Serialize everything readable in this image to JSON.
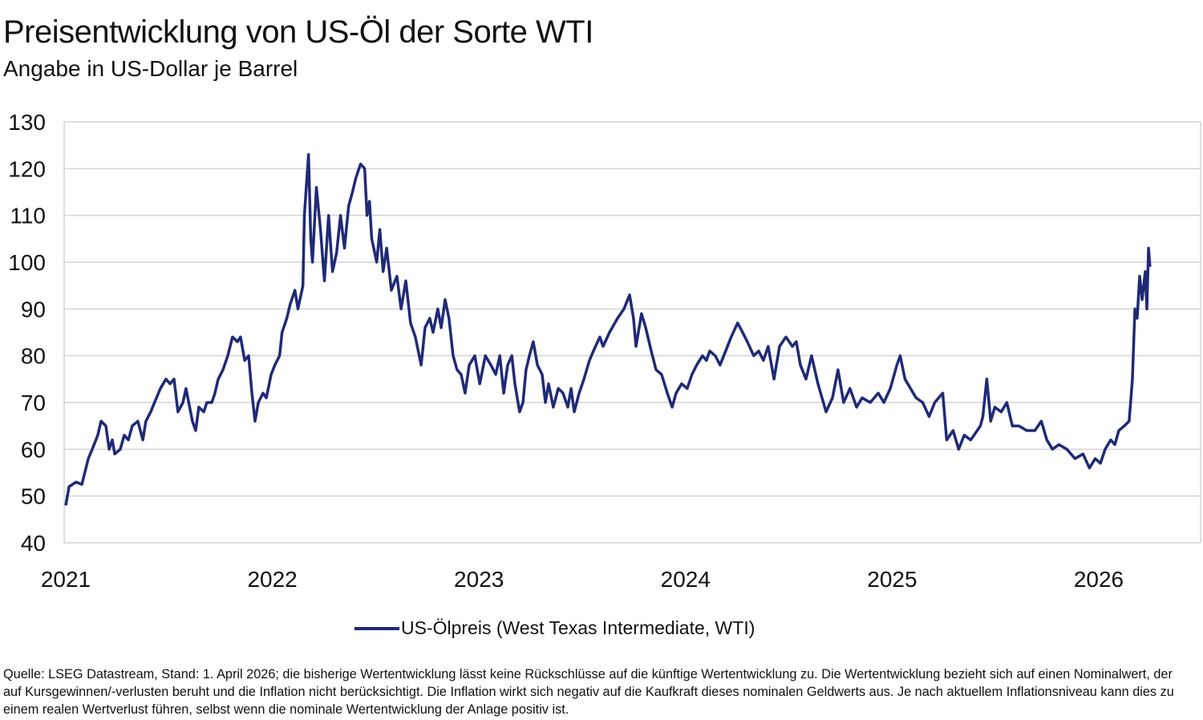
{
  "title": "Preisentwicklung von US-Öl der Sorte WTI",
  "subtitle": "Angabe in US-Dollar je Barrel",
  "source": "Quelle: LSEG Datastream, Stand: 1. April 2026; die bisherige Wertentwicklung lässt keine Rückschlüsse auf die künftige Wertentwicklung zu. Die Wertentwicklung bezieht sich auf einen Nominalwert, der auf Kursgewinnen/-verlusten beruht und die Inflation nicht berücksichtigt. Die Inflation wirkt sich negativ auf die Kaufkraft dieses nominalen Geldwerts aus. Je nach aktuellem Inflationsniveau kann dies zu einem realen Wertverlust führen, selbst wenn die nominale Wertentwicklung der Anlage positiv ist.",
  "chart_data": {
    "type": "line",
    "title": "Preisentwicklung von US-Öl der Sorte WTI",
    "subtitle": "Angabe in US-Dollar je Barrel",
    "xlabel": "",
    "ylabel": "",
    "ylim": [
      40,
      130
    ],
    "xlim": [
      2021,
      2026.5
    ],
    "yticks": [
      "40",
      "50",
      "60",
      "70",
      "80",
      "90",
      "100",
      "110",
      "120",
      "130"
    ],
    "xticks": [
      "2021",
      "2022",
      "2023",
      "2024",
      "2025",
      "2026"
    ],
    "grid": "horizontal",
    "legend_position": "bottom",
    "color": "#1f2a77",
    "series": [
      {
        "name": "US-Ölpreis (West Texas Intermediate, WTI)",
        "points": [
          [
            2021.0,
            48
          ],
          [
            2021.016,
            52
          ],
          [
            2021.05,
            53
          ],
          [
            2021.078,
            52.5
          ],
          [
            2021.109,
            58
          ],
          [
            2021.128,
            60
          ],
          [
            2021.155,
            63
          ],
          [
            2021.171,
            66
          ],
          [
            2021.194,
            65
          ],
          [
            2021.21,
            60
          ],
          [
            2021.225,
            62
          ],
          [
            2021.237,
            59
          ],
          [
            2021.264,
            60
          ],
          [
            2021.283,
            63
          ],
          [
            2021.303,
            62
          ],
          [
            2021.322,
            65
          ],
          [
            2021.349,
            66
          ],
          [
            2021.373,
            62
          ],
          [
            2021.388,
            66
          ],
          [
            2021.411,
            68
          ],
          [
            2021.439,
            71
          ],
          [
            2021.458,
            73
          ],
          [
            2021.485,
            75
          ],
          [
            2021.505,
            74
          ],
          [
            2021.524,
            75
          ],
          [
            2021.543,
            68
          ],
          [
            2021.567,
            70
          ],
          [
            2021.582,
            73
          ],
          [
            2021.613,
            66
          ],
          [
            2021.629,
            64
          ],
          [
            2021.644,
            69
          ],
          [
            2021.668,
            68
          ],
          [
            2021.683,
            70
          ],
          [
            2021.707,
            70
          ],
          [
            2021.722,
            72
          ],
          [
            2021.738,
            75
          ],
          [
            2021.761,
            77
          ],
          [
            2021.784,
            80
          ],
          [
            2021.807,
            84
          ],
          [
            2021.831,
            83
          ],
          [
            2021.846,
            84
          ],
          [
            2021.866,
            79
          ],
          [
            2021.885,
            80
          ],
          [
            2021.901,
            72
          ],
          [
            2021.916,
            66
          ],
          [
            2021.932,
            70
          ],
          [
            2021.955,
            72
          ],
          [
            2021.971,
            71
          ],
          [
            2021.994,
            76
          ],
          [
            2022.012,
            78
          ],
          [
            2022.035,
            80
          ],
          [
            2022.047,
            85
          ],
          [
            2022.07,
            88
          ],
          [
            2022.086,
            91
          ],
          [
            2022.109,
            94
          ],
          [
            2022.124,
            90
          ],
          [
            2022.148,
            95
          ],
          [
            2022.155,
            110
          ],
          [
            2022.175,
            123
          ],
          [
            2022.186,
            105
          ],
          [
            2022.194,
            100
          ],
          [
            2022.213,
            116
          ],
          [
            2022.233,
            107
          ],
          [
            2022.252,
            96
          ],
          [
            2022.272,
            110
          ],
          [
            2022.291,
            98
          ],
          [
            2022.311,
            102
          ],
          [
            2022.33,
            110
          ],
          [
            2022.349,
            103
          ],
          [
            2022.369,
            112
          ],
          [
            2022.388,
            115
          ],
          [
            2022.404,
            118
          ],
          [
            2022.427,
            121
          ],
          [
            2022.447,
            120
          ],
          [
            2022.458,
            110
          ],
          [
            2022.47,
            113
          ],
          [
            2022.481,
            105
          ],
          [
            2022.505,
            100
          ],
          [
            2022.52,
            107
          ],
          [
            2022.536,
            98
          ],
          [
            2022.553,
            103
          ],
          [
            2022.576,
            94
          ],
          [
            2022.603,
            97
          ],
          [
            2022.623,
            90
          ],
          [
            2022.646,
            96
          ],
          [
            2022.669,
            87
          ],
          [
            2022.692,
            84
          ],
          [
            2022.72,
            78
          ],
          [
            2022.739,
            86
          ],
          [
            2022.762,
            88
          ],
          [
            2022.778,
            85
          ],
          [
            2022.801,
            90
          ],
          [
            2022.817,
            86
          ],
          [
            2022.836,
            92
          ],
          [
            2022.855,
            88
          ],
          [
            2022.875,
            80
          ],
          [
            2022.894,
            77
          ],
          [
            2022.914,
            76
          ],
          [
            2022.933,
            72
          ],
          [
            2022.953,
            78
          ],
          [
            2022.98,
            80
          ],
          [
            2023.004,
            74
          ],
          [
            2023.031,
            80
          ],
          [
            2023.058,
            78
          ],
          [
            2023.081,
            76
          ],
          [
            2023.101,
            80
          ],
          [
            2023.12,
            72
          ],
          [
            2023.139,
            78
          ],
          [
            2023.159,
            80
          ],
          [
            2023.174,
            74
          ],
          [
            2023.197,
            68
          ],
          [
            2023.213,
            70
          ],
          [
            2023.228,
            77
          ],
          [
            2023.244,
            80
          ],
          [
            2023.263,
            83
          ],
          [
            2023.283,
            78
          ],
          [
            2023.306,
            76
          ],
          [
            2023.322,
            70
          ],
          [
            2023.337,
            74
          ],
          [
            2023.36,
            69
          ],
          [
            2023.384,
            73
          ],
          [
            2023.407,
            72
          ],
          [
            2023.43,
            69
          ],
          [
            2023.446,
            73
          ],
          [
            2023.461,
            68
          ],
          [
            2023.485,
            72
          ],
          [
            2023.508,
            75
          ],
          [
            2023.535,
            79
          ],
          [
            2023.554,
            81
          ],
          [
            2023.585,
            84
          ],
          [
            2023.601,
            82
          ],
          [
            2023.632,
            85
          ],
          [
            2023.671,
            88
          ],
          [
            2023.702,
            90
          ],
          [
            2023.729,
            93
          ],
          [
            2023.748,
            88
          ],
          [
            2023.76,
            82
          ],
          [
            2023.787,
            89
          ],
          [
            2023.807,
            86
          ],
          [
            2023.834,
            81
          ],
          [
            2023.857,
            77
          ],
          [
            2023.884,
            76
          ],
          [
            2023.912,
            72
          ],
          [
            2023.935,
            69
          ],
          [
            2023.954,
            72
          ],
          [
            2023.981,
            74
          ],
          [
            2024.008,
            73
          ],
          [
            2024.031,
            76
          ],
          [
            2024.054,
            78
          ],
          [
            2024.082,
            80
          ],
          [
            2024.101,
            79
          ],
          [
            2024.117,
            81
          ],
          [
            2024.144,
            80
          ],
          [
            2024.167,
            78
          ],
          [
            2024.194,
            81
          ],
          [
            2024.221,
            84
          ],
          [
            2024.252,
            87
          ],
          [
            2024.276,
            85
          ],
          [
            2024.299,
            83
          ],
          [
            2024.33,
            80
          ],
          [
            2024.354,
            81
          ],
          [
            2024.377,
            79
          ],
          [
            2024.4,
            82
          ],
          [
            2024.428,
            75
          ],
          [
            2024.455,
            82
          ],
          [
            2024.486,
            84
          ],
          [
            2024.517,
            82
          ],
          [
            2024.536,
            83
          ],
          [
            2024.556,
            78
          ],
          [
            2024.583,
            75
          ],
          [
            2024.61,
            80
          ],
          [
            2024.641,
            74
          ],
          [
            2024.68,
            68
          ],
          [
            2024.711,
            71
          ],
          [
            2024.738,
            77
          ],
          [
            2024.765,
            70
          ],
          [
            2024.796,
            73
          ],
          [
            2024.828,
            69
          ],
          [
            2024.855,
            71
          ],
          [
            2024.894,
            70
          ],
          [
            2024.933,
            72
          ],
          [
            2024.96,
            70
          ],
          [
            2024.991,
            73
          ],
          [
            2025.023,
            78
          ],
          [
            2025.039,
            80
          ],
          [
            2025.062,
            75
          ],
          [
            2025.089,
            73
          ],
          [
            2025.116,
            71
          ],
          [
            2025.148,
            70
          ],
          [
            2025.179,
            67
          ],
          [
            2025.206,
            70
          ],
          [
            2025.245,
            72
          ],
          [
            2025.264,
            62
          ],
          [
            2025.295,
            64
          ],
          [
            2025.322,
            60
          ],
          [
            2025.349,
            63
          ],
          [
            2025.38,
            62
          ],
          [
            2025.412,
            64
          ],
          [
            2025.427,
            65
          ],
          [
            2025.439,
            67
          ],
          [
            2025.458,
            75
          ],
          [
            2025.477,
            66
          ],
          [
            2025.497,
            69
          ],
          [
            2025.528,
            68
          ],
          [
            2025.555,
            70
          ],
          [
            2025.582,
            65
          ],
          [
            2025.613,
            65
          ],
          [
            2025.652,
            64
          ],
          [
            2025.691,
            64
          ],
          [
            2025.722,
            66
          ],
          [
            2025.749,
            62
          ],
          [
            2025.776,
            60
          ],
          [
            2025.807,
            61
          ],
          [
            2025.846,
            60
          ],
          [
            2025.885,
            58
          ],
          [
            2025.924,
            59
          ],
          [
            2025.955,
            56
          ],
          [
            2025.983,
            58
          ],
          [
            2026.008,
            57
          ],
          [
            2026.031,
            60
          ],
          [
            2026.058,
            62
          ],
          [
            2026.078,
            61
          ],
          [
            2026.097,
            64
          ],
          [
            2026.124,
            65
          ],
          [
            2026.147,
            66
          ],
          [
            2026.163,
            75
          ],
          [
            2026.175,
            90
          ],
          [
            2026.186,
            88
          ],
          [
            2026.198,
            97
          ],
          [
            2026.21,
            92
          ],
          [
            2026.225,
            98
          ],
          [
            2026.233,
            90
          ],
          [
            2026.241,
            103
          ],
          [
            2026.248,
            99
          ]
        ]
      }
    ]
  }
}
